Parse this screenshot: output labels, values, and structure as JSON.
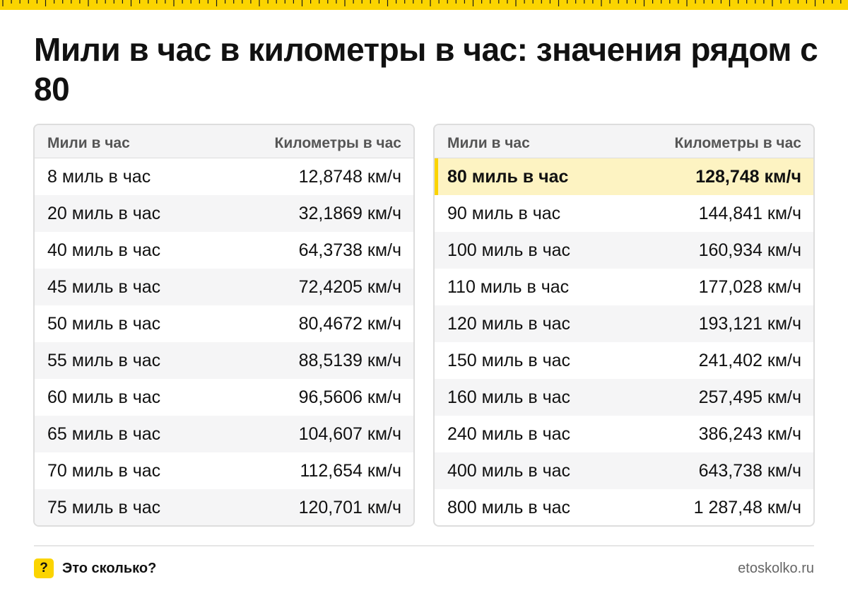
{
  "title": "Мили в час в километры в час: значения рядом с 80",
  "columns": {
    "mph": "Мили в час",
    "kmh": "Километры в час"
  },
  "left_rows": [
    {
      "mph": "8 миль в час",
      "kmh": "12,8748 км/ч"
    },
    {
      "mph": "20 миль в час",
      "kmh": "32,1869 км/ч"
    },
    {
      "mph": "40 миль в час",
      "kmh": "64,3738 км/ч"
    },
    {
      "mph": "45 миль в час",
      "kmh": "72,4205 км/ч"
    },
    {
      "mph": "50 миль в час",
      "kmh": "80,4672 км/ч"
    },
    {
      "mph": "55 миль в час",
      "kmh": "88,5139 км/ч"
    },
    {
      "mph": "60 миль в час",
      "kmh": "96,5606 км/ч"
    },
    {
      "mph": "65 миль в час",
      "kmh": "104,607 км/ч"
    },
    {
      "mph": "70 миль в час",
      "kmh": "112,654 км/ч"
    },
    {
      "mph": "75 миль в час",
      "kmh": "120,701 км/ч"
    }
  ],
  "right_rows": [
    {
      "mph": "80 миль в час",
      "kmh": "128,748 км/ч",
      "highlight": true
    },
    {
      "mph": "90 миль в час",
      "kmh": "144,841 км/ч"
    },
    {
      "mph": "100 миль в час",
      "kmh": "160,934 км/ч"
    },
    {
      "mph": "110 миль в час",
      "kmh": "177,028 км/ч"
    },
    {
      "mph": "120 миль в час",
      "kmh": "193,121 км/ч"
    },
    {
      "mph": "150 миль в час",
      "kmh": "241,402 км/ч"
    },
    {
      "mph": "160 миль в час",
      "kmh": "257,495 км/ч"
    },
    {
      "mph": "240 миль в час",
      "kmh": "386,243 км/ч"
    },
    {
      "mph": "400 миль в час",
      "kmh": "643,738 км/ч"
    },
    {
      "mph": "800 миль в час",
      "kmh": "1 287,48 км/ч"
    }
  ],
  "footer": {
    "badge": "?",
    "brand": "Это сколько?",
    "site": "etoskolko.ru"
  },
  "colors": {
    "accent": "#fbd400",
    "highlight_row": "#fdf3c2",
    "alt_row": "#f5f5f6",
    "border": "#dddddd"
  },
  "icons": {
    "ruler": "ruler-strip",
    "help": "question-badge-icon"
  }
}
